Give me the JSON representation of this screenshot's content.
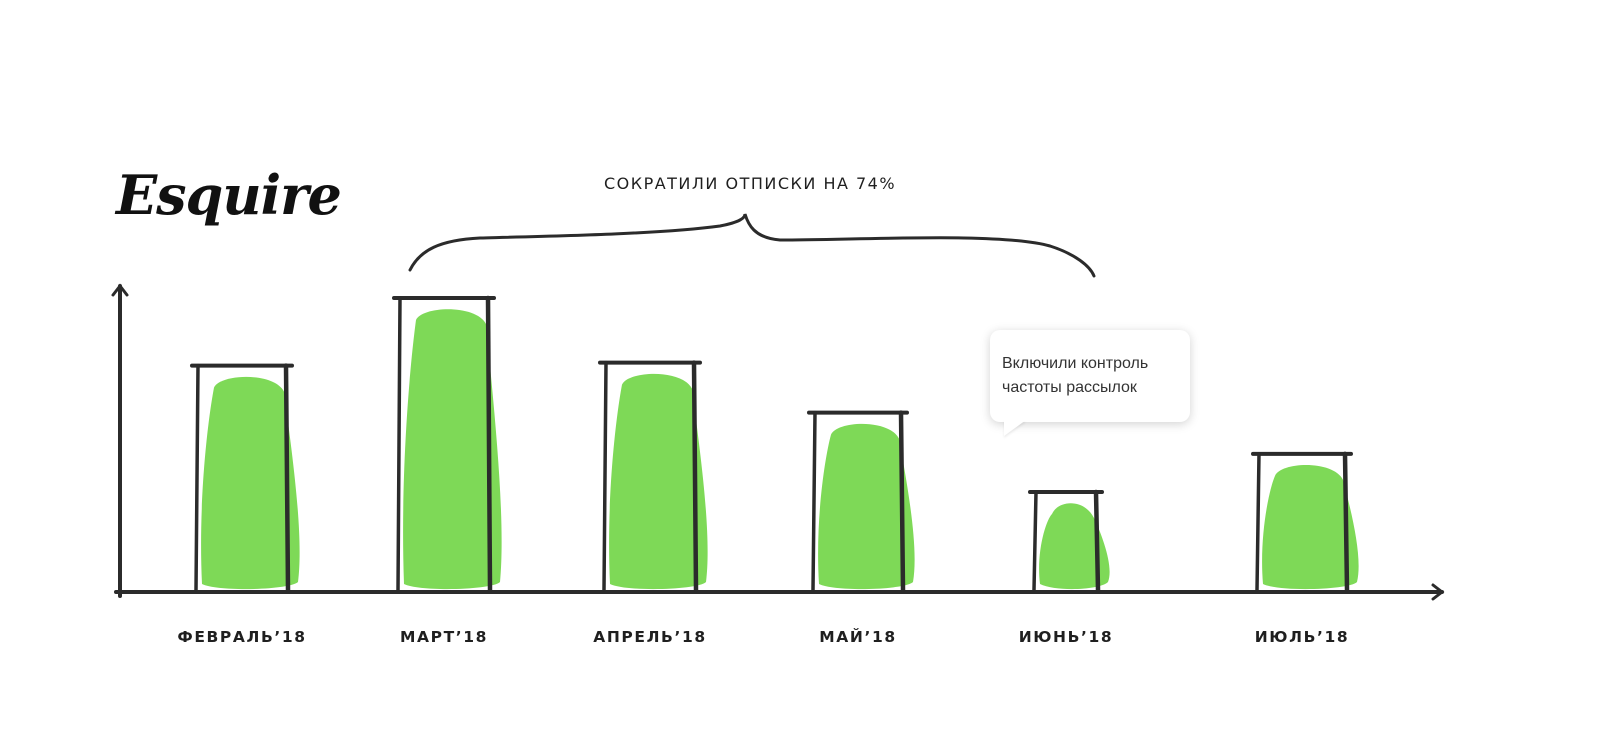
{
  "brand": {
    "logo_text": "Esquire"
  },
  "annotation": {
    "brace_label": "СОКРАТИЛИ ОТПИСКИ НА 74%"
  },
  "callout": {
    "text": "Включили контроль\nчастоты рассылок"
  },
  "colors": {
    "bar_fill": "#7ed957",
    "outline": "#2b2b2b",
    "axis": "#2b2b2b"
  },
  "chart_data": {
    "type": "bar",
    "title": "",
    "xlabel": "",
    "ylabel": "",
    "grid": false,
    "categories": [
      "ФЕВРАЛЬ’18",
      "МАРТ’18",
      "АПРЕЛЬ’18",
      "МАЙ’18",
      "ИЮНЬ’18",
      "ИЮЛЬ’18"
    ],
    "values": [
      77,
      100,
      78,
      61,
      34,
      47
    ],
    "ylim": [
      0,
      100
    ]
  }
}
